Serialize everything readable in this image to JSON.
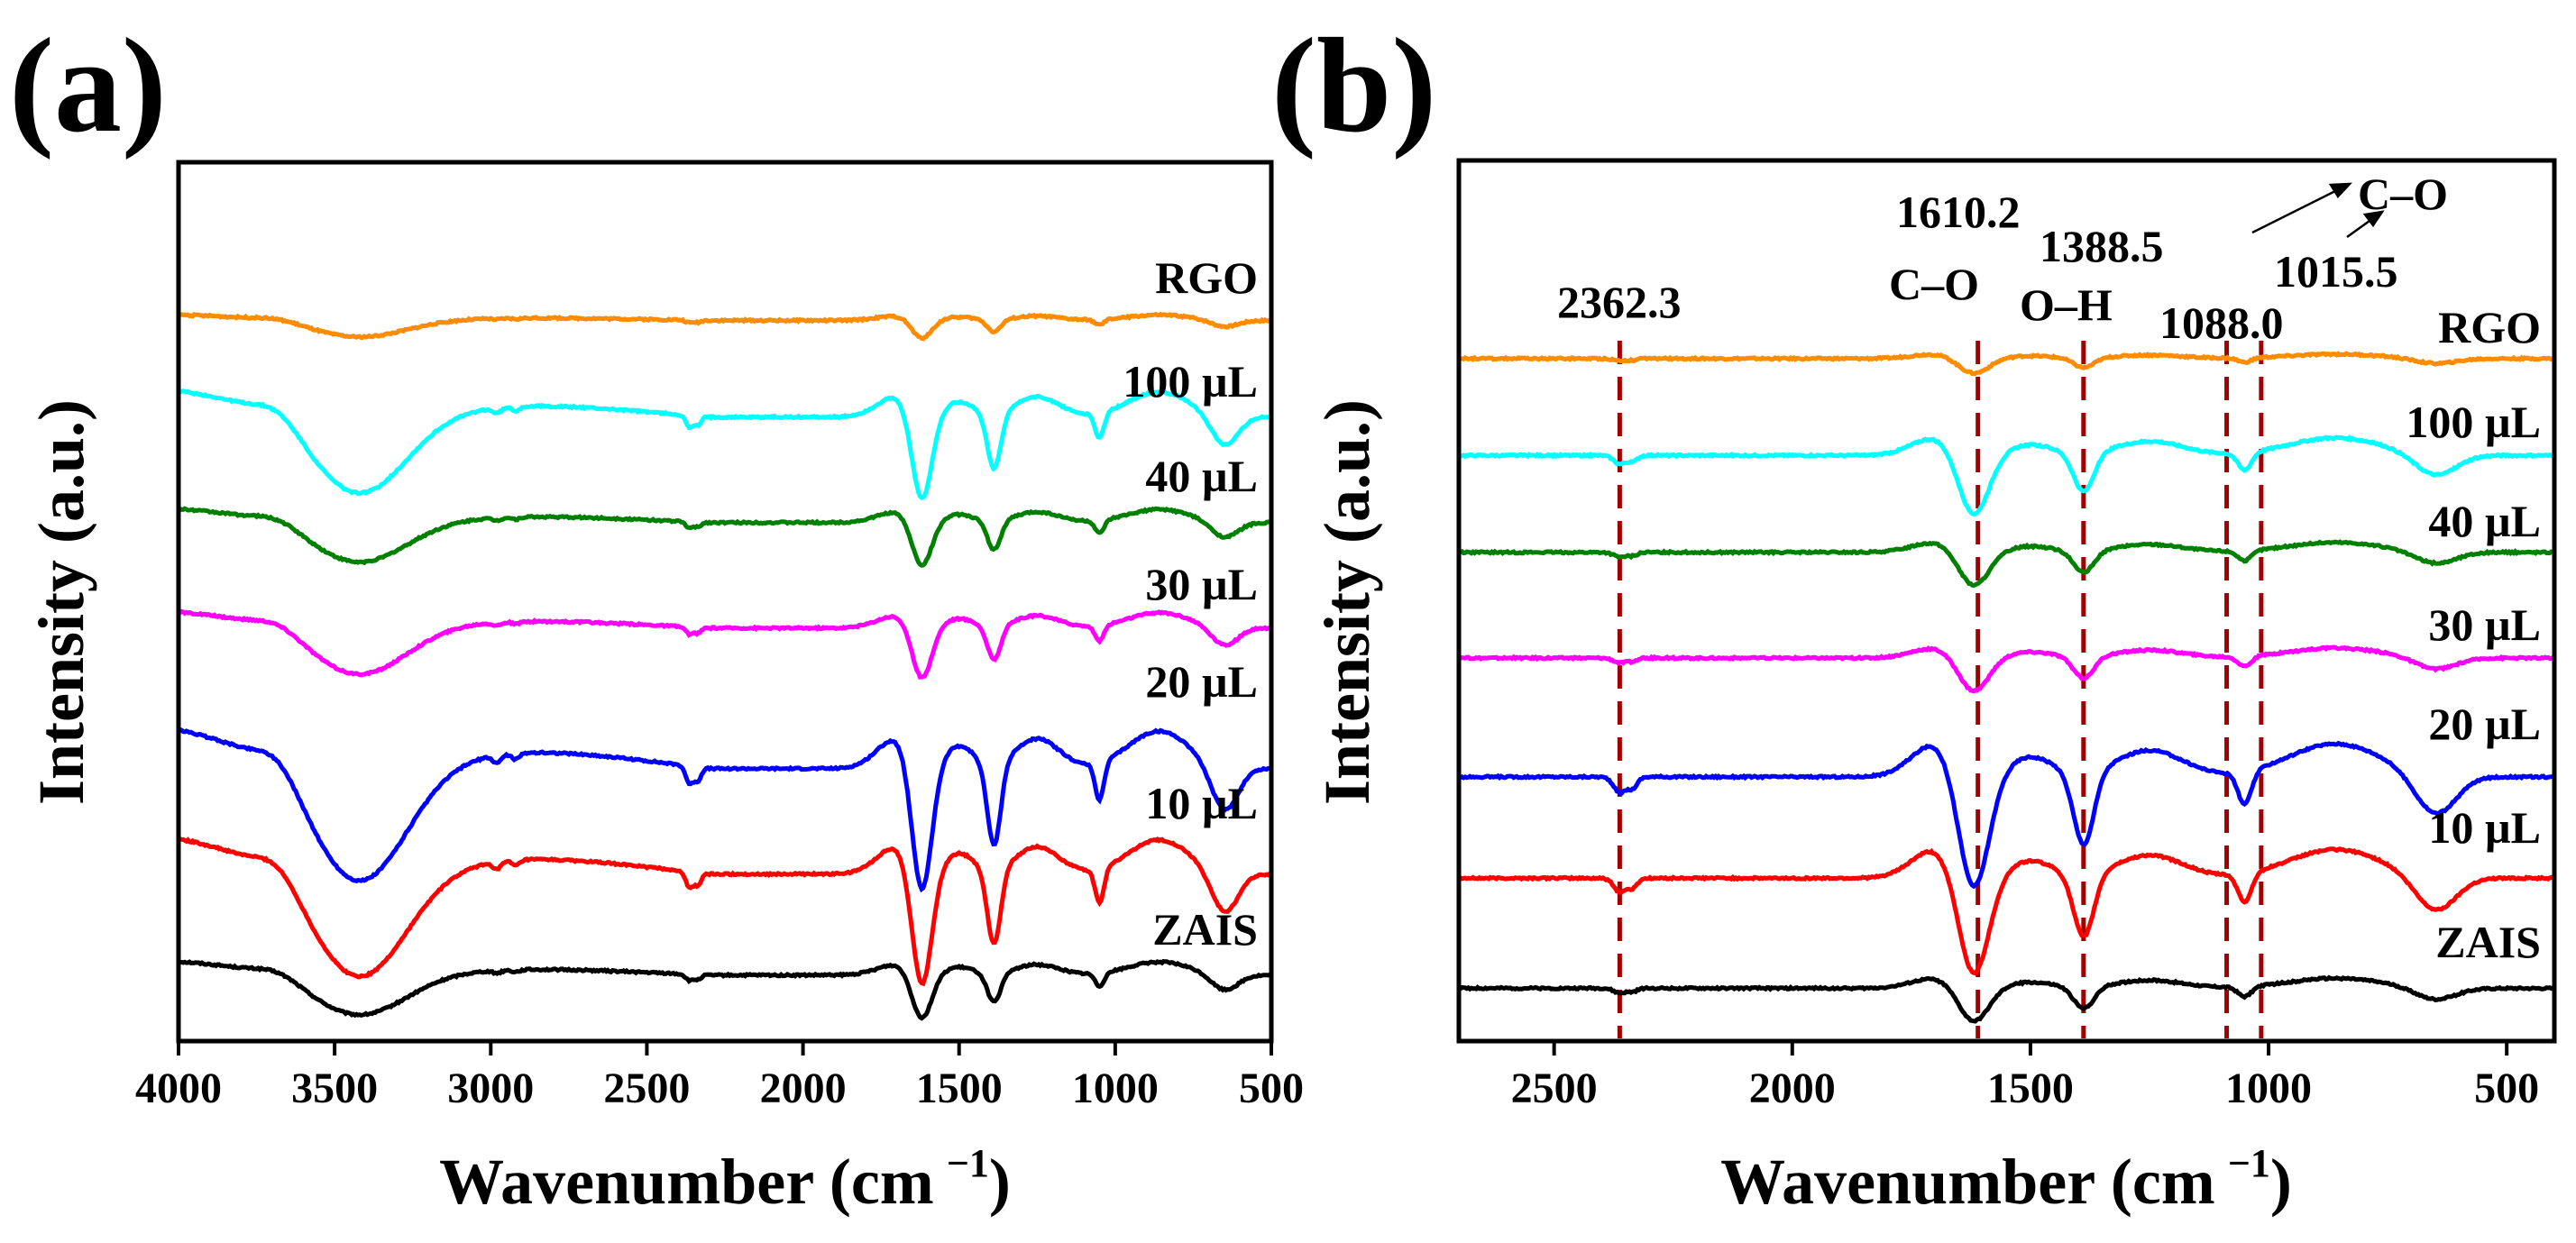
{
  "chart_data": [
    {
      "type": "line",
      "panel_label": "(a)",
      "xlabel": "Wavenumber (cm",
      "xlabel_sup": "−1",
      "xlabel_end": ")",
      "ylabel": "Intensity (a.u.)",
      "xlim": [
        4000,
        500
      ],
      "x_ticks": [
        4000,
        3500,
        3000,
        2500,
        2000,
        1500,
        1000,
        500
      ],
      "x_tick_labels": [
        "4000",
        "3500",
        "3000",
        "2500",
        "2000",
        "1500",
        "1000",
        "500"
      ],
      "ylim": [
        0,
        10
      ],
      "y_ticks_visible": false,
      "series": [
        {
          "name": "ZAIS",
          "color": "#000000",
          "offset": 0.75,
          "scale": 0.6
        },
        {
          "name": "10 µL",
          "color": "#ff0000",
          "offset": 1.9,
          "scale": 1.55
        },
        {
          "name": "20 µL",
          "color": "#0000ff",
          "offset": 3.1,
          "scale": 1.7
        },
        {
          "name": "30 µL",
          "color": "#ff00ff",
          "offset": 4.7,
          "scale": 0.7
        },
        {
          "name": "40 µL",
          "color": "#008000",
          "offset": 5.9,
          "scale": 0.6
        },
        {
          "name": "100 µL",
          "color": "#00ffff",
          "offset": 7.1,
          "scale": 1.15
        },
        {
          "name": "RGO",
          "color": "#ff8c00",
          "offset": 8.2,
          "scale": 0.25
        }
      ]
    },
    {
      "type": "line",
      "panel_label": "(b)",
      "xlabel": "Wavenumber (cm",
      "xlabel_sup": "−1",
      "xlabel_end": ")",
      "ylabel": "Intensity (a.u.)",
      "xlim": [
        2700,
        400
      ],
      "x_ticks": [
        2500,
        2000,
        1500,
        1000,
        500
      ],
      "x_tick_labels": [
        "2500",
        "2000",
        "1500",
        "1000",
        "500"
      ],
      "ylim": [
        0,
        10
      ],
      "y_ticks_visible": false,
      "series": [
        {
          "name": "ZAIS",
          "color": "#000000",
          "offset": 0.6,
          "scale": 0.45
        },
        {
          "name": "10 µL",
          "color": "#ff0000",
          "offset": 1.85,
          "scale": 1.3
        },
        {
          "name": "20 µL",
          "color": "#0000ff",
          "offset": 3.0,
          "scale": 1.5
        },
        {
          "name": "30 µL",
          "color": "#ff00ff",
          "offset": 4.35,
          "scale": 0.45
        },
        {
          "name": "40 µL",
          "color": "#008000",
          "offset": 5.55,
          "scale": 0.45
        },
        {
          "name": "100 µL",
          "color": "#00ffff",
          "offset": 6.65,
          "scale": 0.8
        },
        {
          "name": "RGO",
          "color": "#ff8c00",
          "offset": 7.75,
          "scale": 0.2
        }
      ],
      "reference_lines": [
        2362.3,
        1610.2,
        1388.5,
        1088.0,
        1015.5
      ],
      "reference_line_color": "#a00000",
      "annotations": [
        {
          "label": "2362.3"
        },
        {
          "label": "1610.2"
        },
        {
          "label": "C–O"
        },
        {
          "label": "1388.5"
        },
        {
          "label": "O–H"
        },
        {
          "label": "1088.0"
        },
        {
          "label": "1015.5"
        },
        {
          "label": "C–O"
        }
      ]
    }
  ]
}
